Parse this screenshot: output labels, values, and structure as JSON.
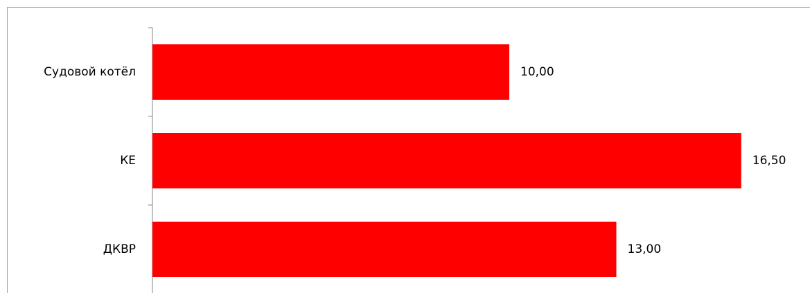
{
  "chart_data": {
    "type": "bar",
    "orientation": "horizontal",
    "categories": [
      "Судовой котёл",
      "КЕ",
      "ДКВР"
    ],
    "values": [
      10,
      16.5,
      13
    ],
    "value_labels": [
      "10,00",
      "16,50",
      "13,00"
    ],
    "color": "#ff0000"
  }
}
